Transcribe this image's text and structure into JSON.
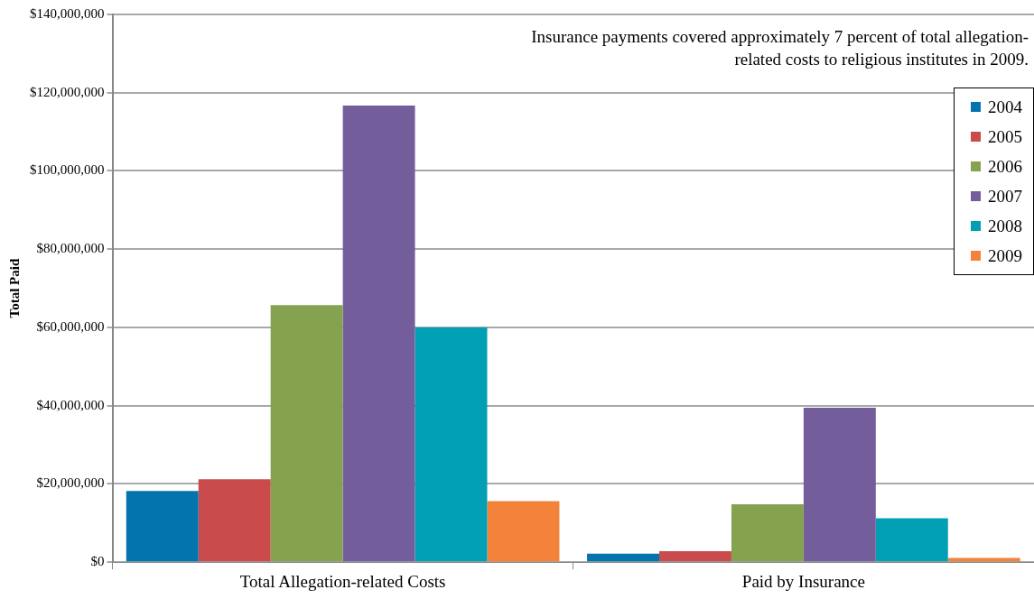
{
  "chart_data": {
    "type": "bar",
    "ylabel": "Total Paid",
    "annotations": [
      "Insurance payments covered approximately 7 percent of total allegation-related costs to religious institutes in 2009."
    ],
    "categories": [
      "Total Allegation-related Costs",
      "Paid by Insurance"
    ],
    "series": [
      {
        "name": "2004",
        "color": "#0374ae",
        "values": [
          18200000,
          2200000
        ]
      },
      {
        "name": "2005",
        "color": "#c94b4b",
        "values": [
          21200000,
          2800000
        ]
      },
      {
        "name": "2006",
        "color": "#85a24f",
        "values": [
          65700000,
          14800000
        ]
      },
      {
        "name": "2007",
        "color": "#735e9b",
        "values": [
          116700000,
          39500000
        ]
      },
      {
        "name": "2008",
        "color": "#009fb3",
        "values": [
          60000000,
          11200000
        ]
      },
      {
        "name": "2009",
        "color": "#f3833a",
        "values": [
          15600000,
          1100000
        ]
      }
    ],
    "ylim": [
      0,
      140000000
    ],
    "yticks": [
      {
        "value": 0,
        "label": "$0"
      },
      {
        "value": 20000000,
        "label": "$20,000,000"
      },
      {
        "value": 40000000,
        "label": "$40,000,000"
      },
      {
        "value": 60000000,
        "label": "$60,000,000"
      },
      {
        "value": 80000000,
        "label": "$80,000,000"
      },
      {
        "value": 100000000,
        "label": "$100,000,000"
      },
      {
        "value": 120000000,
        "label": "$120,000,000"
      },
      {
        "value": 140000000,
        "label": "$140,000,000"
      }
    ],
    "grid": "y",
    "legend": "top right"
  }
}
